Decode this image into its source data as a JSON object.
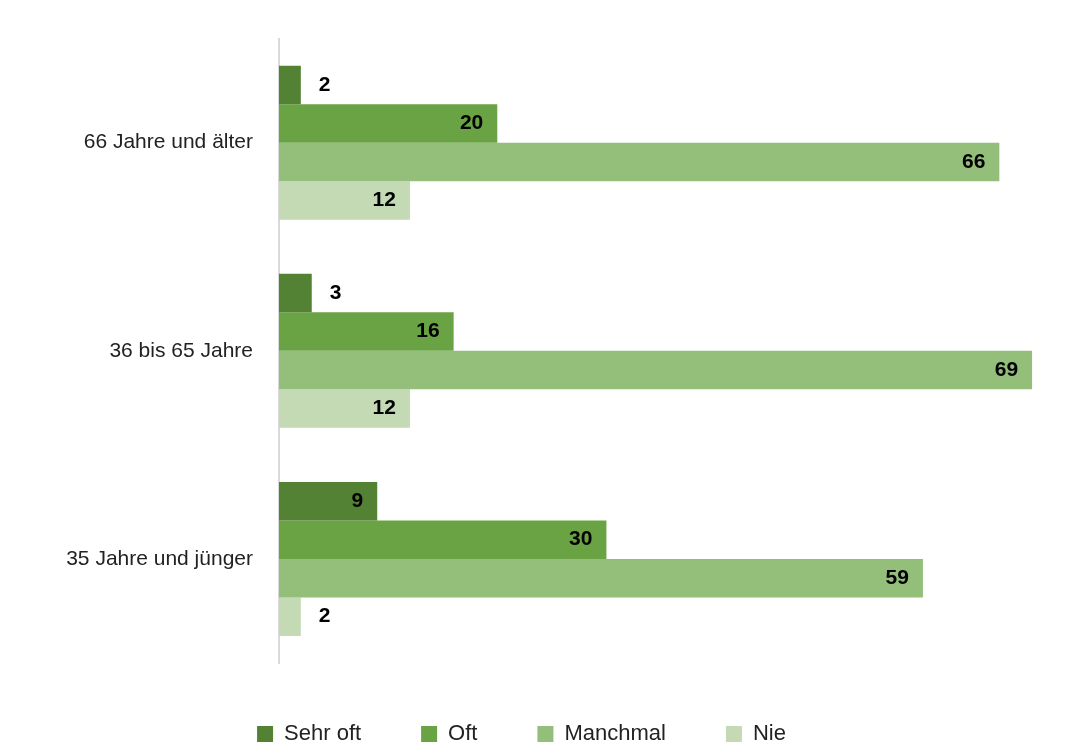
{
  "chart_data": {
    "type": "bar",
    "orientation": "horizontal",
    "categories": [
      "66 Jahre und älter",
      "36 bis 65 Jahre",
      "35 Jahre und jünger"
    ],
    "series": [
      {
        "name": "Sehr oft",
        "color": "#548235",
        "values": [
          2,
          3,
          9
        ]
      },
      {
        "name": "Oft",
        "color": "#6aa343",
        "values": [
          20,
          16,
          30
        ]
      },
      {
        "name": "Manchmal",
        "color": "#93bf7a",
        "values": [
          66,
          69,
          59
        ]
      },
      {
        "name": "Nie",
        "color": "#c3dab4",
        "values": [
          12,
          12,
          2
        ]
      }
    ],
    "data_labels": true,
    "legend": "bottom",
    "grid": false
  }
}
